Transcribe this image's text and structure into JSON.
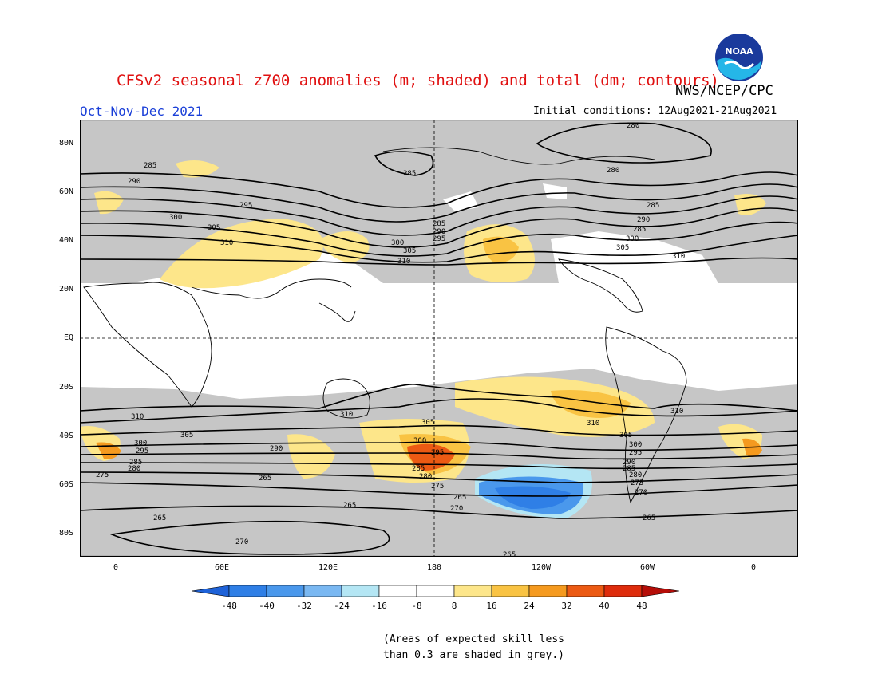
{
  "title": "CFSv2 seasonal z700 anomalies (m; shaded) and total (dm; contours)",
  "agency": "NWS/NCEP/CPC",
  "period": "Oct-Nov-Dec 2021",
  "initial_conditions": "Initial conditions: 12Aug2021-21Aug2021",
  "logo_text": "NOAA",
  "lat_labels": [
    "80N",
    "60N",
    "40N",
    "20N",
    "EQ",
    "20S",
    "40S",
    "60S",
    "80S"
  ],
  "lon_labels": [
    "0",
    "60E",
    "120E",
    "180",
    "120W",
    "60W",
    "0"
  ],
  "colorbar": {
    "labels": [
      "-48",
      "-40",
      "-32",
      "-24",
      "-16",
      "-8",
      "8",
      "16",
      "24",
      "32",
      "40",
      "48"
    ],
    "colors": [
      "#1e62d8",
      "#2f7fe6",
      "#4a98ec",
      "#7ab8f2",
      "#b4e6f4",
      "#ffffff",
      "#fde68a",
      "#f9c343",
      "#f59a1f",
      "#ec5a13",
      "#de2c0c",
      "#b50d08"
    ]
  },
  "contour_labels": [
    "265",
    "270",
    "275",
    "280",
    "285",
    "290",
    "295",
    "300",
    "305",
    "310"
  ],
  "skill_note": [
    "(Areas of expected skill less",
    "than 0.3 are shaded in grey.)"
  ],
  "colors": {
    "title": "#e01010",
    "period": "#1a3fd8",
    "grey_skill": "#c6c6c6"
  }
}
